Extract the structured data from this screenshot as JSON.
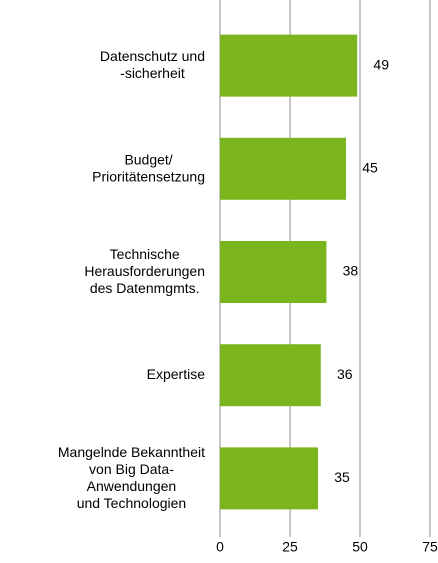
{
  "chart_data": {
    "type": "bar",
    "orientation": "horizontal",
    "categories": [
      "Datenschutz und\n-sicherheit",
      "Budget/\nPrioritätensetzung",
      "Technische\nHerausforderungen\ndes Datenmgmts.",
      "Expertise",
      "Mangelnde Bekanntheit\nvon Big Data-\nAnwendungen\nund Technologien"
    ],
    "values": [
      49,
      45,
      38,
      36,
      35
    ],
    "color": "#7ab51d",
    "xlim": [
      0,
      75
    ],
    "xticks": [
      0,
      25,
      50,
      75
    ],
    "grid": true
  }
}
